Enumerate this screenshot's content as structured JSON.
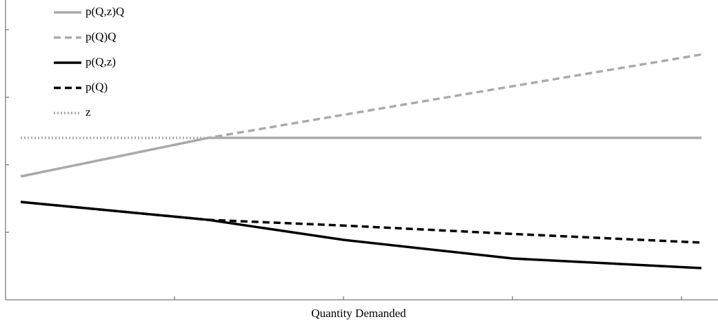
{
  "chart_data": {
    "type": "line",
    "xlabel": "Quantity Demanded",
    "x": [
      0.09,
      1.2,
      2.0,
      3.0,
      4.118
    ],
    "xlim": [
      0,
      4.216
    ],
    "xticks": [
      1,
      2,
      3,
      4
    ],
    "ylim": [
      0,
      4.44
    ],
    "yticks": [
      1,
      2,
      3,
      4
    ],
    "legend": "upper-left",
    "series": [
      {
        "name": "p(Q,z)Q",
        "color": "#aaaaaa",
        "style": "solid",
        "values": [
          1.827,
          2.398,
          2.398,
          2.398,
          2.398
        ]
      },
      {
        "name": "p(Q)Q",
        "color": "#aaaaaa",
        "style": "dashed",
        "values": [
          1.827,
          2.398,
          2.74,
          3.163,
          3.633
        ]
      },
      {
        "name": "p(Q,z)",
        "color": "#000000",
        "style": "solid",
        "values": [
          1.449,
          1.184,
          0.888,
          0.612,
          0.469
        ]
      },
      {
        "name": "p(Q)",
        "color": "#000000",
        "style": "dashed",
        "values": [
          1.449,
          1.184,
          1.1,
          0.976,
          0.847
        ]
      },
      {
        "name": "z",
        "color": "#aaaaaa",
        "style": "dotted",
        "values": [
          2.398,
          2.398,
          null,
          null,
          null
        ]
      }
    ]
  }
}
